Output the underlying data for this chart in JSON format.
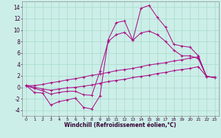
{
  "background_color": "#cceee8",
  "grid_color": "#aaddcc",
  "line_color": "#aa1188",
  "xlabel": "Windchill (Refroidissement éolien,°C)",
  "xlim": [
    -0.5,
    23.5
  ],
  "ylim": [
    -5.0,
    15.0
  ],
  "x_ticks": [
    0,
    1,
    2,
    3,
    4,
    5,
    6,
    7,
    8,
    9,
    10,
    11,
    12,
    13,
    14,
    15,
    16,
    17,
    18,
    19,
    20,
    21,
    22,
    23
  ],
  "y_ticks": [
    -4,
    -2,
    0,
    2,
    4,
    6,
    8,
    10,
    12,
    14
  ],
  "series1": [
    0.3,
    -0.9,
    -1.0,
    -3.1,
    -2.5,
    -2.2,
    -1.9,
    -3.5,
    -3.8,
    -1.5,
    8.3,
    11.3,
    11.6,
    8.2,
    13.8,
    14.3,
    12.2,
    10.5,
    7.5,
    7.2,
    7.0,
    5.5,
    1.9,
    1.7
  ],
  "series2": [
    0.3,
    -0.2,
    -0.6,
    -1.2,
    -0.9,
    -0.7,
    -0.7,
    -1.3,
    -1.4,
    2.8,
    8.0,
    9.2,
    9.6,
    8.2,
    9.5,
    9.8,
    9.2,
    8.0,
    6.5,
    5.5,
    5.5,
    5.0,
    1.9,
    1.7
  ],
  "series3": [
    0.3,
    0.3,
    0.5,
    0.8,
    1.0,
    1.3,
    1.5,
    1.8,
    2.1,
    2.3,
    2.6,
    2.9,
    3.1,
    3.3,
    3.6,
    3.9,
    4.1,
    4.3,
    4.6,
    4.8,
    5.1,
    5.3,
    1.9,
    1.7
  ],
  "series4": [
    0.3,
    0.0,
    -0.3,
    -0.5,
    -0.3,
    -0.1,
    0.0,
    0.2,
    0.4,
    0.7,
    1.0,
    1.2,
    1.4,
    1.7,
    1.9,
    2.1,
    2.4,
    2.6,
    2.9,
    3.1,
    3.3,
    3.6,
    1.9,
    1.7
  ]
}
